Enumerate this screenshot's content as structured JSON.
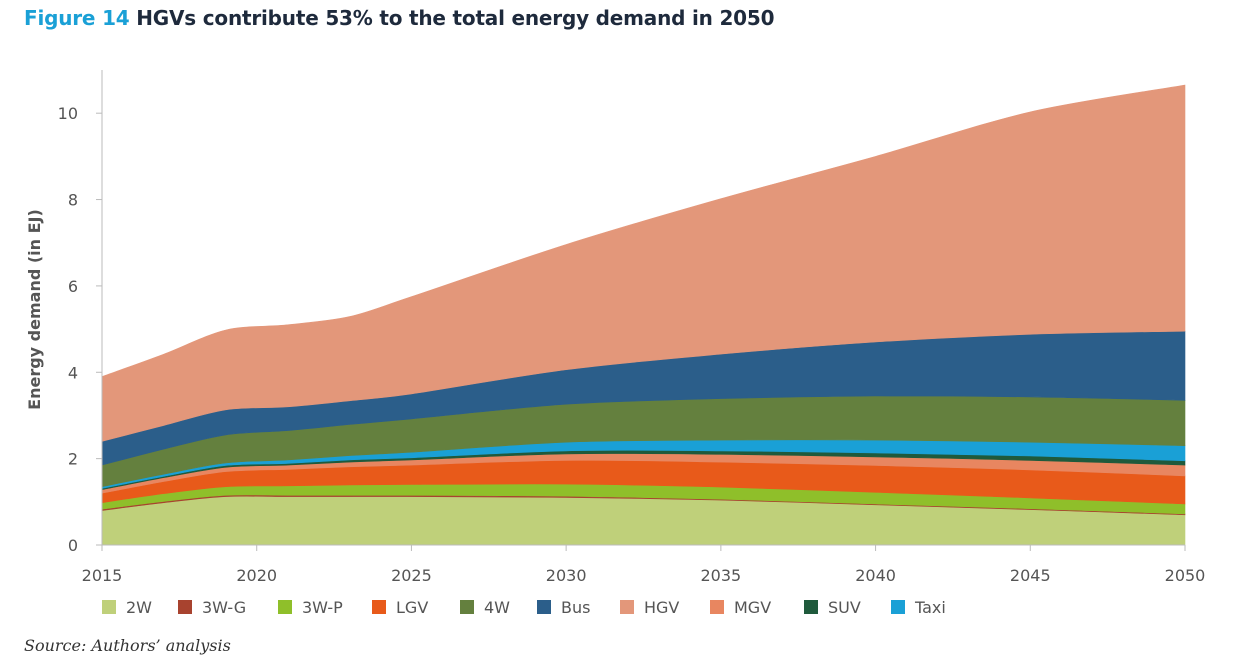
{
  "header": {
    "figure_label": "Figure 14",
    "title": "HGVs contribute 53% to the total energy demand in 2050"
  },
  "source": "Source: Authors’ analysis",
  "chart_data": {
    "type": "area",
    "stacked": true,
    "ylabel": "Energy demand (in EJ)",
    "xlabel": "",
    "x": [
      2015,
      2017,
      2019,
      2021,
      2023,
      2025,
      2030,
      2035,
      2040,
      2045,
      2050
    ],
    "xticks": [
      2015,
      2020,
      2025,
      2030,
      2035,
      2040,
      2045,
      2050
    ],
    "yticks": [
      0,
      2,
      4,
      6,
      8,
      10
    ],
    "ylim": [
      0,
      11
    ],
    "legend_position": "bottom",
    "series": [
      {
        "name": "2W",
        "color": "#bfd07a",
        "values": [
          0.8,
          0.98,
          1.12,
          1.12,
          1.12,
          1.12,
          1.1,
          1.04,
          0.93,
          0.82,
          0.7
        ]
      },
      {
        "name": "3W-G",
        "color": "#a8432f",
        "values": [
          0.03,
          0.03,
          0.03,
          0.03,
          0.03,
          0.03,
          0.03,
          0.02,
          0.02,
          0.02,
          0.02
        ]
      },
      {
        "name": "3W-P",
        "color": "#8fbf2a",
        "values": [
          0.15,
          0.18,
          0.2,
          0.22,
          0.24,
          0.25,
          0.28,
          0.28,
          0.27,
          0.25,
          0.23
        ]
      },
      {
        "name": "LGV",
        "color": "#e85a1a",
        "values": [
          0.22,
          0.28,
          0.35,
          0.38,
          0.42,
          0.45,
          0.55,
          0.58,
          0.62,
          0.65,
          0.65
        ]
      },
      {
        "name": "4W",
        "color": "#64803e",
        "values": [
          0.5,
          0.58,
          0.65,
          0.68,
          0.72,
          0.77,
          0.88,
          0.96,
          1.02,
          1.05,
          1.05
        ]
      },
      {
        "name": "Bus",
        "color": "#2b5e8a",
        "values": [
          0.55,
          0.55,
          0.58,
          0.55,
          0.55,
          0.58,
          0.8,
          1.03,
          1.25,
          1.45,
          1.6
        ]
      },
      {
        "name": "HGV",
        "color": "#e3977a",
        "values": [
          1.5,
          1.65,
          1.85,
          1.9,
          1.95,
          2.25,
          2.9,
          3.6,
          4.3,
          5.15,
          5.7
        ]
      },
      {
        "name": "MGV",
        "color": "#e88660",
        "values": [
          0.08,
          0.09,
          0.1,
          0.1,
          0.11,
          0.12,
          0.15,
          0.18,
          0.2,
          0.22,
          0.25
        ]
      },
      {
        "name": "SUV",
        "color": "#1f5a3c",
        "values": [
          0.03,
          0.03,
          0.04,
          0.04,
          0.05,
          0.05,
          0.07,
          0.08,
          0.09,
          0.1,
          0.1
        ]
      },
      {
        "name": "Taxi",
        "color": "#1aa0d6",
        "values": [
          0.04,
          0.05,
          0.06,
          0.08,
          0.1,
          0.13,
          0.2,
          0.25,
          0.3,
          0.32,
          0.35
        ]
      }
    ],
    "stack_order": [
      "2W",
      "3W-G",
      "3W-P",
      "LGV",
      "MGV",
      "SUV",
      "Taxi",
      "4W",
      "Bus",
      "HGV"
    ]
  }
}
